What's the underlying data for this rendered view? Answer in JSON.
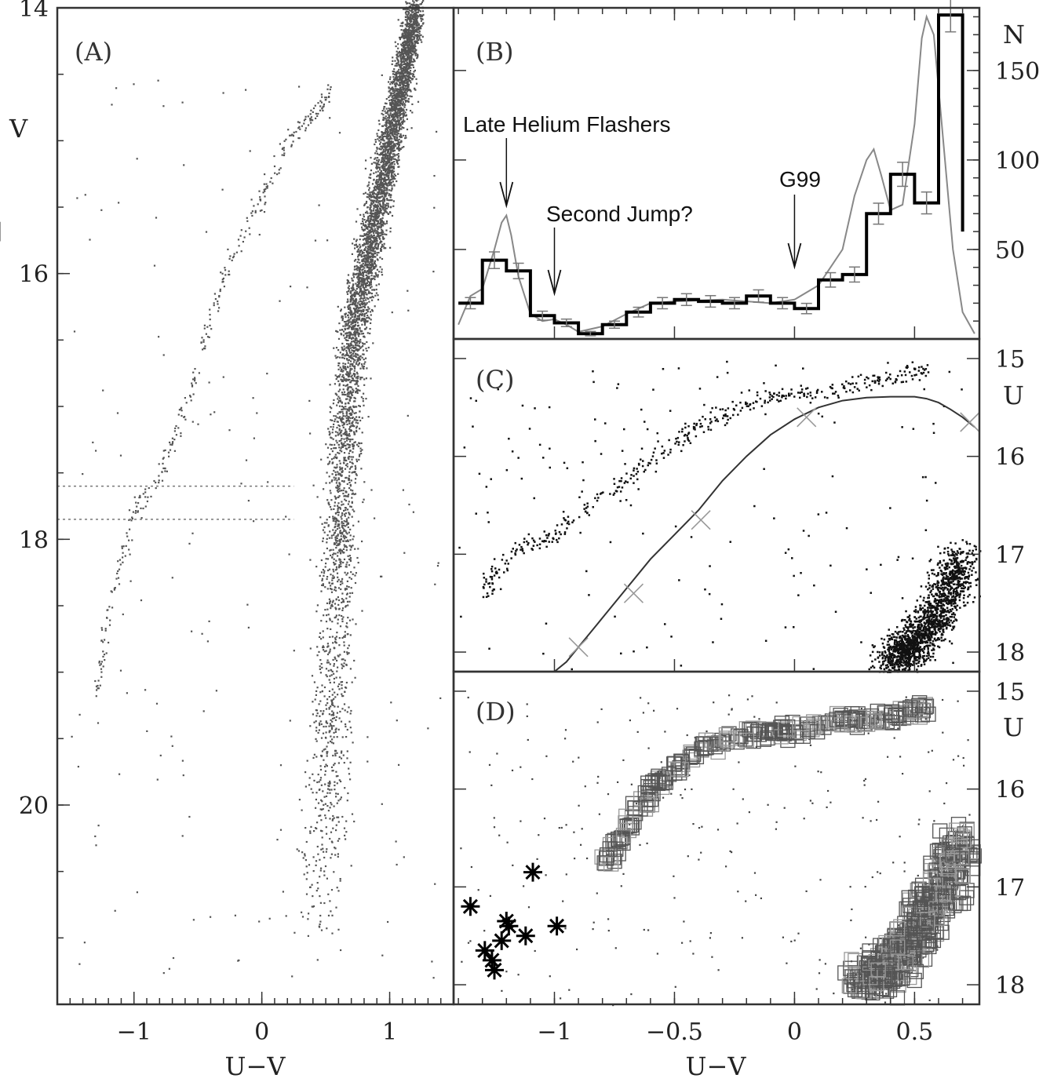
{
  "chart_data": [
    {
      "panel": "A",
      "type": "scatter",
      "label": "(A)",
      "xlabel": "U−V",
      "ylabel": "V",
      "xlim": [
        -1.6,
        1.5
      ],
      "ylim": [
        21.5,
        14
      ],
      "y_inverted": true,
      "x_ticks": [
        "−1",
        "0",
        "1"
      ],
      "x_tick_values": [
        -1,
        0,
        1
      ],
      "y_ticks": [
        "14",
        "16",
        "18",
        "20"
      ],
      "y_tick_values": [
        14,
        16,
        18,
        20
      ],
      "reference_lines": [
        {
          "style": "dotted",
          "y": 17.6
        },
        {
          "style": "dotted",
          "y": 17.85
        }
      ],
      "point_color": "#555555",
      "series": [
        {
          "component": "main sequence / subgiant / giant",
          "x": [
            0.45,
            0.5,
            0.55,
            0.6,
            0.65,
            0.7,
            0.8,
            0.9,
            1.0,
            1.1,
            1.2
          ],
          "y": [
            21.0,
            20.0,
            19.0,
            18.0,
            17.2,
            16.5,
            16.0,
            15.5,
            15.0,
            14.5,
            14.0
          ]
        },
        {
          "component": "horizontal branch",
          "x": [
            -1.3,
            -1.2,
            -1.0,
            -0.8,
            -0.6,
            -0.4,
            -0.2,
            0.0,
            0.2,
            0.4,
            0.55
          ],
          "y": [
            19.2,
            18.5,
            17.8,
            17.5,
            17.0,
            16.3,
            15.8,
            15.4,
            15.0,
            14.8,
            14.6
          ]
        }
      ]
    },
    {
      "panel": "B",
      "type": "bar",
      "label": "(B)",
      "ylabel": "N",
      "xlim": [
        -1.42,
        0.77
      ],
      "ylim": [
        0,
        185
      ],
      "y_ticks": [
        "50",
        "100",
        "150"
      ],
      "y_tick_values": [
        50,
        100,
        150
      ],
      "bin_edges": [
        -1.4,
        -1.3,
        -1.2,
        -1.1,
        -1.0,
        -0.9,
        -0.8,
        -0.7,
        -0.6,
        -0.5,
        -0.4,
        -0.3,
        -0.2,
        -0.1,
        0.0,
        0.1,
        0.2,
        0.3,
        0.4,
        0.5,
        0.6,
        0.7
      ],
      "values": [
        20,
        44,
        38,
        13,
        9,
        3,
        8,
        15,
        20,
        22,
        21,
        20,
        24,
        20,
        17,
        33,
        36,
        70,
        92,
        76,
        181,
        60
      ],
      "smooth_curve": {
        "x": [
          -1.4,
          -1.35,
          -1.3,
          -1.25,
          -1.22,
          -1.2,
          -1.18,
          -1.15,
          -1.1,
          -1.05,
          -1.0,
          -0.95,
          -0.9,
          -0.8,
          -0.7,
          -0.6,
          -0.5,
          -0.3,
          -0.1,
          0.0,
          0.1,
          0.2,
          0.25,
          0.3,
          0.33,
          0.36,
          0.4,
          0.45,
          0.5,
          0.53,
          0.55,
          0.58,
          0.62,
          0.66,
          0.7,
          0.75
        ],
        "y": [
          8,
          24,
          28,
          50,
          65,
          69,
          58,
          35,
          14,
          10,
          11,
          8,
          4,
          7,
          14,
          20,
          21,
          22,
          20,
          22,
          30,
          50,
          80,
          100,
          106,
          92,
          72,
          75,
          120,
          168,
          180,
          170,
          110,
          50,
          15,
          3
        ]
      },
      "annotations": [
        {
          "text": "Late Helium Flashers",
          "x": -1.2
        },
        {
          "text": "Second Jump?",
          "x": -1.0
        },
        {
          "text": "G99",
          "x": 0.0
        }
      ]
    },
    {
      "panel": "C",
      "type": "scatter",
      "label": "(C)",
      "ylabel": "U",
      "xlim": [
        -1.42,
        0.77
      ],
      "ylim": [
        18.2,
        14.8
      ],
      "y_inverted": true,
      "y_ticks": [
        "15",
        "16",
        "17",
        "18"
      ],
      "y_tick_values": [
        15,
        16,
        17,
        18
      ],
      "model_curve": {
        "x": [
          -1.0,
          -0.95,
          -0.9,
          -0.8,
          -0.7,
          -0.6,
          -0.5,
          -0.4,
          -0.3,
          -0.2,
          -0.1,
          0.0,
          0.1,
          0.2,
          0.3,
          0.4,
          0.5,
          0.55,
          0.6,
          0.65,
          0.7,
          0.75
        ],
        "y": [
          18.25,
          18.1,
          17.95,
          17.65,
          17.35,
          17.05,
          16.8,
          16.55,
          16.25,
          16.0,
          15.78,
          15.62,
          15.5,
          15.43,
          15.4,
          15.39,
          15.39,
          15.41,
          15.45,
          15.52,
          15.6,
          15.7
        ]
      },
      "model_markers": {
        "x": [
          -0.9,
          -0.67,
          -0.39,
          0.05,
          0.73
        ],
        "y": [
          17.95,
          17.4,
          16.65,
          15.6,
          15.65
        ]
      },
      "point_color": "#111111",
      "series": [
        {
          "component": "horizontal branch",
          "x": [
            -1.3,
            -1.2,
            -1.0,
            -0.8,
            -0.6,
            -0.4,
            -0.2,
            0.0,
            0.2,
            0.4,
            0.55
          ],
          "y": [
            17.4,
            17.0,
            16.8,
            16.4,
            16.0,
            15.7,
            15.45,
            15.35,
            15.3,
            15.2,
            15.1
          ]
        },
        {
          "component": "main cluster",
          "x": [
            0.4,
            0.5,
            0.6,
            0.7
          ],
          "y": [
            18.1,
            17.9,
            17.6,
            17.0
          ]
        }
      ]
    },
    {
      "panel": "D",
      "type": "scatter",
      "label": "(D)",
      "ylabel": "U",
      "xlabel": "U−V",
      "xlim": [
        -1.42,
        0.77
      ],
      "ylim": [
        18.2,
        14.8
      ],
      "y_inverted": true,
      "x_ticks": [
        "−1",
        "−0.5",
        "0",
        "0.5"
      ],
      "x_tick_values": [
        -1,
        -0.5,
        0,
        0.5
      ],
      "y_ticks": [
        "15",
        "16",
        "17",
        "18"
      ],
      "y_tick_values": [
        15,
        16,
        17,
        18
      ],
      "series": [
        {
          "marker": "square",
          "component": "horizontal branch",
          "x": [
            -0.8,
            -0.7,
            -0.6,
            -0.5,
            -0.4,
            -0.3,
            -0.2,
            -0.1,
            0.0,
            0.1,
            0.2,
            0.3,
            0.4,
            0.5,
            0.55
          ],
          "y": [
            16.8,
            16.4,
            16.0,
            15.8,
            15.6,
            15.5,
            15.45,
            15.4,
            15.4,
            15.35,
            15.3,
            15.3,
            15.25,
            15.2,
            15.2
          ]
        },
        {
          "marker": "square",
          "component": "main cluster",
          "x": [
            0.3,
            0.4,
            0.5,
            0.6,
            0.7
          ],
          "y": [
            18.0,
            17.8,
            17.5,
            17.1,
            16.5
          ]
        },
        {
          "marker": "star",
          "component": "late helium flashers",
          "x": [
            -1.35,
            -1.29,
            -1.26,
            -1.25,
            -1.22,
            -1.2,
            -1.19,
            -1.12,
            -1.09,
            -0.99
          ],
          "y": [
            17.2,
            17.65,
            17.75,
            17.85,
            17.55,
            17.35,
            17.4,
            17.5,
            16.85,
            17.4
          ]
        }
      ]
    }
  ]
}
